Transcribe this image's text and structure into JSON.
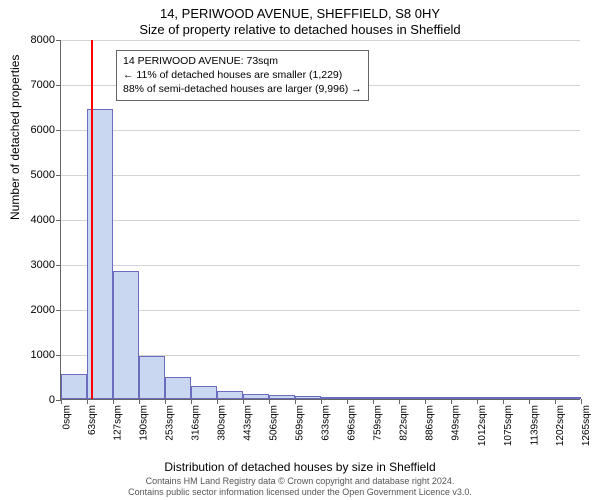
{
  "chart": {
    "type": "histogram",
    "title_line1": "14, PERIWOOD AVENUE, SHEFFIELD, S8 0HY",
    "title_line2": "Size of property relative to detached houses in Sheffield",
    "ylabel": "Number of detached properties",
    "xlabel": "Distribution of detached houses by size in Sheffield",
    "ylim": [
      0,
      8000
    ],
    "ytick_step": 1000,
    "yticks": [
      0,
      1000,
      2000,
      3000,
      4000,
      5000,
      6000,
      7000,
      8000
    ],
    "xtick_labels": [
      "0sqm",
      "63sqm",
      "127sqm",
      "190sqm",
      "253sqm",
      "316sqm",
      "380sqm",
      "443sqm",
      "506sqm",
      "569sqm",
      "633sqm",
      "696sqm",
      "759sqm",
      "822sqm",
      "886sqm",
      "949sqm",
      "1012sqm",
      "1075sqm",
      "1139sqm",
      "1202sqm",
      "1265sqm"
    ],
    "bar_values": [
      550,
      6450,
      2850,
      950,
      500,
      300,
      180,
      120,
      80,
      60,
      50,
      30,
      20,
      18,
      15,
      12,
      10,
      9,
      8,
      6
    ],
    "bar_fill": "#c9d7f0",
    "bar_border": "#6b6bbf",
    "bar_width_ratio": 1.0,
    "background_color": "#ffffff",
    "grid_color": "#d3d3d3",
    "axis_color": "#666666",
    "tick_fontsize": 11,
    "label_fontsize": 12,
    "title_fontsize": 13,
    "marker": {
      "value_sqm": 73,
      "color": "#ff0000"
    },
    "annotation": {
      "line1": "14 PERIWOOD AVENUE: 73sqm",
      "line2": "← 11% of detached houses are smaller (1,229)",
      "line3": "88% of semi-detached houses are larger (9,996) →",
      "border_color": "#666666",
      "bg_color": "#ffffff",
      "fontsize": 10.5
    },
    "footer_line1": "Contains HM Land Registry data © Crown copyright and database right 2024.",
    "footer_line2": "Contains public sector information licensed under the Open Government Licence v3.0."
  }
}
